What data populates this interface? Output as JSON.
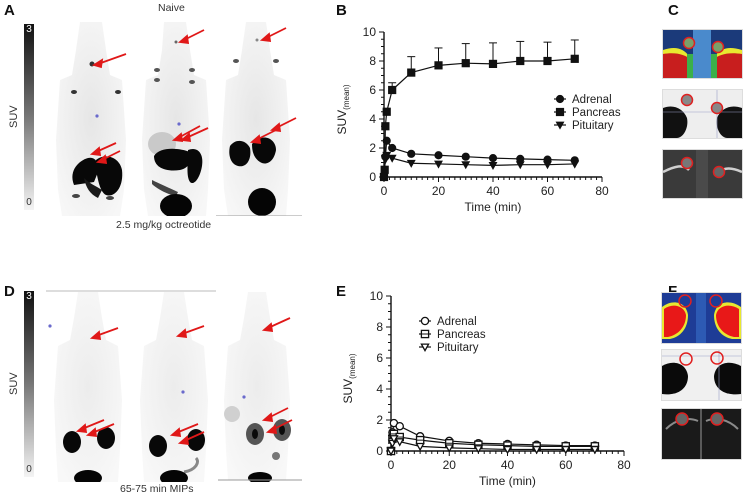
{
  "panels": {
    "A": {
      "label": "A",
      "title": "Naive",
      "caption": "2.5 mg/kg octreotide",
      "colorbar": {
        "label": "SUV",
        "max": "3",
        "min": "0"
      }
    },
    "B": {
      "label": "B"
    },
    "C": {
      "label": "C"
    },
    "D": {
      "label": "D",
      "caption": "65-75 min MIPs",
      "colorbar": {
        "label": "SUV",
        "max": "3",
        "min": "0"
      }
    },
    "E": {
      "label": "E"
    },
    "F": {
      "label": "F"
    }
  },
  "chart_data": [
    {
      "panel": "B",
      "type": "line",
      "title": "",
      "xlabel": "Time (min)",
      "ylabel": "SUV(mean)",
      "ylabel_main": "SUV",
      "ylabel_sub": "(mean)",
      "xlim": [
        0,
        80
      ],
      "ylim": [
        0,
        10
      ],
      "xticks": [
        "0",
        "20",
        "40",
        "60",
        "80"
      ],
      "yticks": [
        "0",
        "2",
        "4",
        "6",
        "8",
        "10"
      ],
      "legend_position": "right-middle",
      "grid": false,
      "series": [
        {
          "name": "Adrenal",
          "marker": "filled-circle",
          "x": [
            0,
            0.5,
            1,
            3,
            10,
            20,
            30,
            40,
            50,
            60,
            70
          ],
          "y": [
            0,
            1.4,
            2.5,
            2.0,
            1.6,
            1.5,
            1.4,
            1.3,
            1.25,
            1.2,
            1.15
          ]
        },
        {
          "name": "Pancreas",
          "marker": "filled-square",
          "x": [
            0,
            0.25,
            0.5,
            1,
            3,
            10,
            20,
            30,
            40,
            50,
            60,
            70
          ],
          "y": [
            0,
            0.5,
            3.5,
            4.5,
            6.0,
            7.2,
            7.7,
            7.85,
            7.8,
            8.0,
            8.0,
            8.15
          ],
          "error_upper": [
            0,
            0,
            0,
            0,
            0.5,
            1.1,
            1.2,
            1.35,
            1.45,
            1.35,
            1.3,
            1.3
          ]
        },
        {
          "name": "Pituitary",
          "marker": "filled-triangle-down",
          "x": [
            0,
            0.5,
            1,
            3,
            10,
            20,
            30,
            40,
            50,
            60,
            70
          ],
          "y": [
            0,
            1.2,
            1.5,
            1.3,
            0.95,
            0.9,
            0.85,
            0.8,
            0.85,
            0.85,
            0.9
          ]
        }
      ]
    },
    {
      "panel": "E",
      "type": "line",
      "title": "",
      "xlabel": "Time (min)",
      "ylabel": "SUV(mean)",
      "ylabel_main": "SUV",
      "ylabel_sub": "(mean)",
      "xlim": [
        0,
        80
      ],
      "ylim": [
        0,
        10
      ],
      "xticks": [
        "0",
        "20",
        "40",
        "60",
        "80"
      ],
      "yticks": [
        "0",
        "2",
        "4",
        "6",
        "8",
        "10"
      ],
      "legend_position": "upper-left",
      "grid": false,
      "series": [
        {
          "name": "Adrenal",
          "marker": "open-circle",
          "x": [
            0,
            0.5,
            1,
            3,
            10,
            20,
            30,
            40,
            50,
            60,
            70
          ],
          "y": [
            0,
            1.2,
            1.8,
            1.6,
            0.95,
            0.65,
            0.5,
            0.45,
            0.4,
            0.35,
            0.35
          ]
        },
        {
          "name": "Pancreas",
          "marker": "open-square",
          "x": [
            0,
            0.5,
            1,
            3,
            10,
            20,
            30,
            40,
            50,
            60,
            70
          ],
          "y": [
            0,
            0.8,
            1.1,
            0.9,
            0.7,
            0.5,
            0.4,
            0.35,
            0.3,
            0.3,
            0.3
          ]
        },
        {
          "name": "Pituitary",
          "marker": "open-triangle-down",
          "x": [
            0,
            0.5,
            1,
            3,
            10,
            20,
            30,
            40,
            50,
            60,
            70
          ],
          "y": [
            0,
            0.5,
            0.8,
            0.6,
            0.3,
            0.2,
            0.15,
            0.1,
            0.1,
            0.1,
            0.1
          ]
        }
      ]
    }
  ]
}
